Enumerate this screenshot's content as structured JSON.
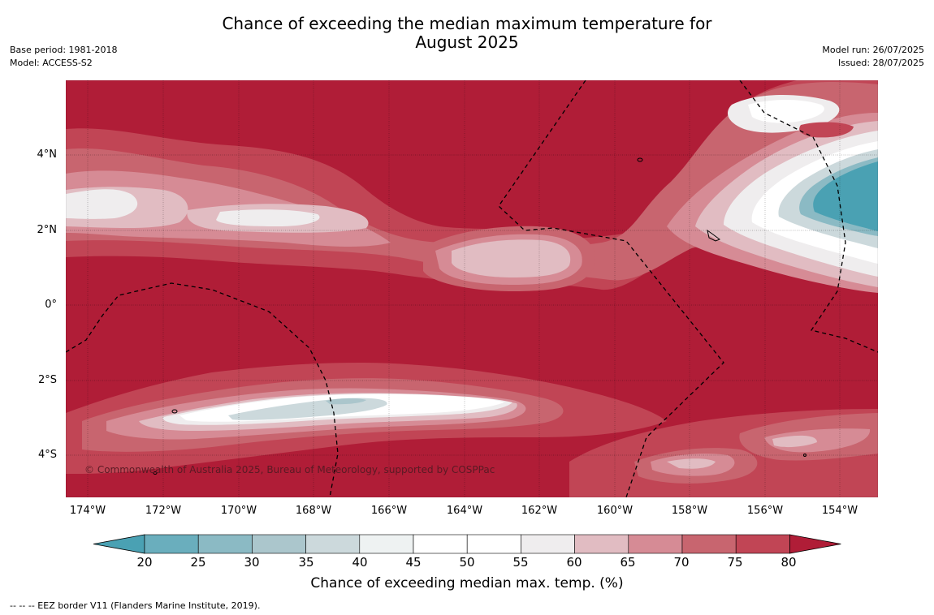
{
  "title": {
    "line1": "Chance of exceeding the median maximum temperature for",
    "line2": "August 2025"
  },
  "meta_left": {
    "base_period": "Base period: 1981-2018",
    "model": "Model: ACCESS-S2"
  },
  "meta_right": {
    "model_run": "Model run: 26/07/2025",
    "issued": "Issued: 28/07/2025"
  },
  "latitude_ticks": [
    "4°N",
    "2°N",
    "0°",
    "2°S",
    "4°S"
  ],
  "longitude_ticks": [
    "174°W",
    "172°W",
    "170°W",
    "168°W",
    "166°W",
    "164°W",
    "162°W",
    "160°W",
    "158°W",
    "156°W",
    "154°W"
  ],
  "copyright": "© Commonwealth of Australia 2025, Bureau of Meteorology, supported by COSPPac",
  "colorbar": {
    "ticks": [
      "20",
      "25",
      "30",
      "35",
      "40",
      "45",
      "50",
      "55",
      "60",
      "65",
      "70",
      "75",
      "80"
    ],
    "colors": [
      "#4aa1b3",
      "#6aaebd",
      "#8bbac4",
      "#abc6cc",
      "#ccd9dc",
      "#eef2f2",
      "#ffffff",
      "#ffffff",
      "#efedee",
      "#e1bcc2",
      "#d68b95",
      "#c8656f",
      "#c14555",
      "#b01d37"
    ],
    "title": "Chance of exceeding median max. temp. (%)"
  },
  "footnote": "--  --  -- EEZ border V11 (Flanders Marine Institute, 2019)."
}
